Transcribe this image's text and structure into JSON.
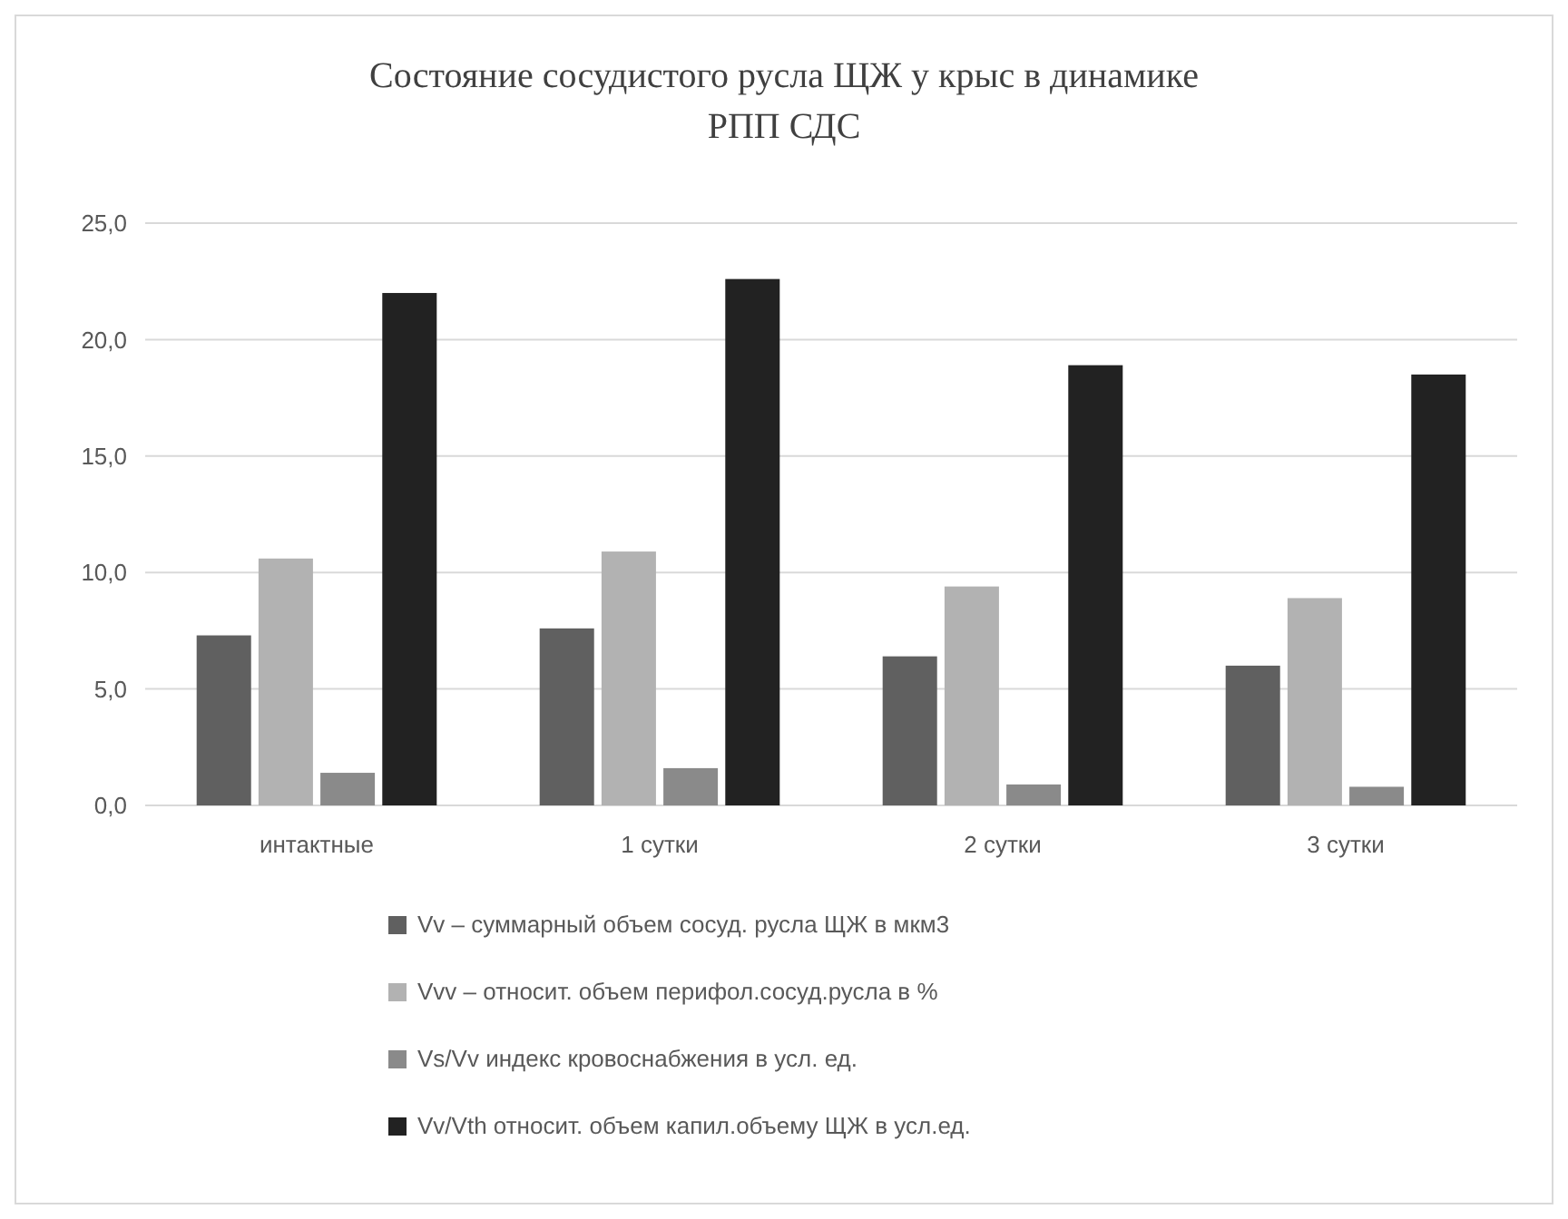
{
  "chart_data": {
    "type": "bar",
    "title": "Состояние сосудистого русла ЩЖ у крыс в динамике РПП СДС",
    "categories": [
      "интактные",
      "1 сутки",
      "2 сутки",
      "3 сутки"
    ],
    "series": [
      {
        "name": "Vv – суммарный объем сосуд. русла ЩЖ в мкм3",
        "color": "#606060",
        "values": [
          7.3,
          7.6,
          6.4,
          6.0
        ]
      },
      {
        "name": "Vvv – относит. объем перифол.сосуд.русла в %",
        "color": "#b2b2b2",
        "values": [
          10.6,
          10.9,
          9.4,
          8.9
        ]
      },
      {
        "name": "Vs/Vv индекс кровоснабжения в усл. ед.",
        "color": "#8a8a8a",
        "values": [
          1.4,
          1.6,
          0.9,
          0.8
        ]
      },
      {
        "name": "Vv/Vth относит. объем капил.объему ЩЖ в  усл.ед.",
        "color": "#222222",
        "values": [
          22.0,
          22.6,
          18.9,
          18.5
        ]
      }
    ],
    "ylim": [
      0,
      25
    ],
    "yticks": [
      {
        "value": 0,
        "label": "0,0"
      },
      {
        "value": 5,
        "label": "5,0"
      },
      {
        "value": 10,
        "label": "10,0"
      },
      {
        "value": 15,
        "label": "15,0"
      },
      {
        "value": 20,
        "label": "20,0"
      },
      {
        "value": 25,
        "label": "25,0"
      }
    ],
    "grid": "y",
    "legend": "bottom"
  }
}
